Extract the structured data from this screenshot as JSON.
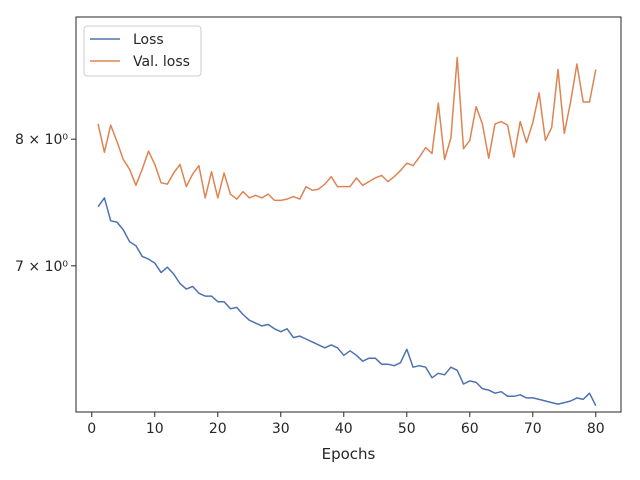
{
  "chart_data": {
    "type": "line",
    "title": "",
    "xlabel": "Epochs",
    "ylabel": "",
    "yscale": "log",
    "grid": false,
    "legend_position": "top-left",
    "xlim": [
      -2.5,
      84
    ],
    "ylim": [
      6.0,
      9.1
    ],
    "xticks": [
      0,
      10,
      20,
      30,
      40,
      50,
      60,
      70,
      80
    ],
    "yticks": [
      {
        "value": 7,
        "label": "7 × 10⁰"
      },
      {
        "value": 8,
        "label": "8 × 10⁰"
      }
    ],
    "x": [
      1,
      2,
      3,
      4,
      5,
      6,
      7,
      8,
      9,
      10,
      11,
      12,
      13,
      14,
      15,
      16,
      17,
      18,
      19,
      20,
      21,
      22,
      23,
      24,
      25,
      26,
      27,
      28,
      29,
      30,
      31,
      32,
      33,
      34,
      35,
      36,
      37,
      38,
      39,
      40,
      41,
      42,
      43,
      44,
      45,
      46,
      47,
      48,
      49,
      50,
      51,
      52,
      53,
      54,
      55,
      56,
      57,
      58,
      59,
      60,
      61,
      62,
      63,
      64,
      65,
      66,
      67,
      68,
      69,
      70,
      71,
      72,
      73,
      74,
      75,
      76,
      77,
      78,
      79,
      80
    ],
    "series": [
      {
        "name": "Loss",
        "color": "#4c72b0",
        "values": [
          7.45,
          7.52,
          7.34,
          7.33,
          7.27,
          7.18,
          7.15,
          7.07,
          7.05,
          7.02,
          6.95,
          6.99,
          6.94,
          6.87,
          6.83,
          6.85,
          6.8,
          6.78,
          6.78,
          6.74,
          6.74,
          6.69,
          6.7,
          6.65,
          6.61,
          6.59,
          6.57,
          6.58,
          6.55,
          6.53,
          6.55,
          6.49,
          6.5,
          6.48,
          6.46,
          6.44,
          6.42,
          6.44,
          6.42,
          6.37,
          6.4,
          6.37,
          6.33,
          6.35,
          6.35,
          6.31,
          6.31,
          6.3,
          6.32,
          6.41,
          6.29,
          6.3,
          6.29,
          6.22,
          6.25,
          6.24,
          6.29,
          6.27,
          6.18,
          6.2,
          6.19,
          6.15,
          6.14,
          6.12,
          6.13,
          6.1,
          6.1,
          6.11,
          6.09,
          6.09,
          6.08,
          6.07,
          6.06,
          6.05,
          6.06,
          6.07,
          6.09,
          6.08,
          6.12,
          6.04
        ]
      },
      {
        "name": "Val. loss",
        "color": "#dd8452",
        "values": [
          8.13,
          7.89,
          8.12,
          7.98,
          7.83,
          7.75,
          7.62,
          7.75,
          7.9,
          7.79,
          7.64,
          7.63,
          7.72,
          7.79,
          7.61,
          7.71,
          7.78,
          7.52,
          7.73,
          7.52,
          7.72,
          7.55,
          7.51,
          7.57,
          7.52,
          7.54,
          7.52,
          7.55,
          7.5,
          7.5,
          7.51,
          7.53,
          7.51,
          7.61,
          7.58,
          7.59,
          7.63,
          7.69,
          7.61,
          7.61,
          7.61,
          7.68,
          7.62,
          7.65,
          7.68,
          7.7,
          7.65,
          7.69,
          7.74,
          7.8,
          7.78,
          7.85,
          7.93,
          7.88,
          8.31,
          7.83,
          8.01,
          8.72,
          7.92,
          7.99,
          8.28,
          8.13,
          7.84,
          8.13,
          8.15,
          8.12,
          7.85,
          8.15,
          7.97,
          8.14,
          8.4,
          7.99,
          8.1,
          8.61,
          8.05,
          8.32,
          8.66,
          8.32,
          8.32,
          8.61
        ]
      }
    ]
  }
}
